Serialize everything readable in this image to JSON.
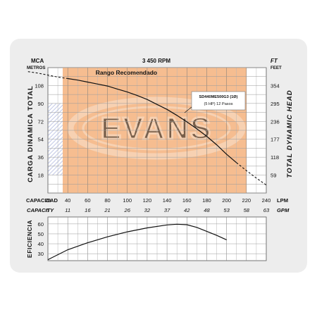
{
  "logo_text": "EVANS",
  "chart_data": [
    {
      "type": "line",
      "title": "3 450 RPM",
      "recommended_zone_label": "Rango Recomendado",
      "recommended_range_lpm": [
        20,
        220
      ],
      "left_axis": {
        "unit": "MCA",
        "unit_sub": "METROS",
        "label": "CARGA DINAMICA TOTAL",
        "ticks": [
          18,
          36,
          54,
          72,
          90,
          108
        ],
        "range": [
          0,
          126
        ]
      },
      "right_axis": {
        "unit": "FT",
        "unit_sub": "FEET",
        "label": "TOTAL DYNAMIC HEAD",
        "ticks": [
          "59",
          "118",
          "177",
          "236",
          "295",
          "354"
        ]
      },
      "x_axis": {
        "label": "CAPACIDAD",
        "unit": "LPM",
        "ticks": [
          20,
          40,
          60,
          80,
          100,
          120,
          140,
          160,
          180,
          200,
          220,
          240
        ],
        "range": [
          20,
          240
        ]
      },
      "x_axis_secondary": {
        "label": "CAPACITY",
        "unit": "GPM",
        "ticks": [
          "5",
          "11",
          "16",
          "21",
          "26",
          "32",
          "37",
          "42",
          "48",
          "53",
          "58",
          "63"
        ]
      },
      "annotation": {
        "line1": "SD440ME500G3 (1Ø)",
        "line2": "(5 HP)  12 Pasos",
        "x": 125,
        "y": 82
      },
      "series": [
        {
          "name": "SD440ME500G3 (1Ø)",
          "x": [
            0,
            10,
            20,
            30,
            40,
            50,
            60,
            70,
            80,
            90,
            100,
            110,
            120,
            130,
            140,
            150,
            160,
            170,
            180,
            190,
            200,
            210,
            220,
            230,
            240
          ],
          "y": [
            122,
            120.5,
            118.5,
            116.5,
            115,
            113.5,
            111.5,
            109.5,
            107.5,
            104.5,
            101.5,
            98,
            94,
            89,
            84,
            78,
            71.5,
            64.5,
            57,
            48.5,
            39,
            30.5,
            22.5,
            15,
            8
          ]
        }
      ]
    },
    {
      "type": "line",
      "ylabel": "EFICIENCIA",
      "y_ticks": [
        30,
        40,
        50,
        60
      ],
      "ylim": [
        23,
        67
      ],
      "x_range": [
        20,
        240
      ],
      "series": [
        {
          "x": [
            20,
            40,
            60,
            80,
            100,
            120,
            140,
            150,
            160,
            170,
            180,
            190,
            200
          ],
          "y": [
            24,
            34,
            41,
            47,
            52,
            56,
            59,
            59.7,
            59.2,
            56.5,
            52.5,
            48.5,
            44
          ]
        }
      ]
    }
  ]
}
